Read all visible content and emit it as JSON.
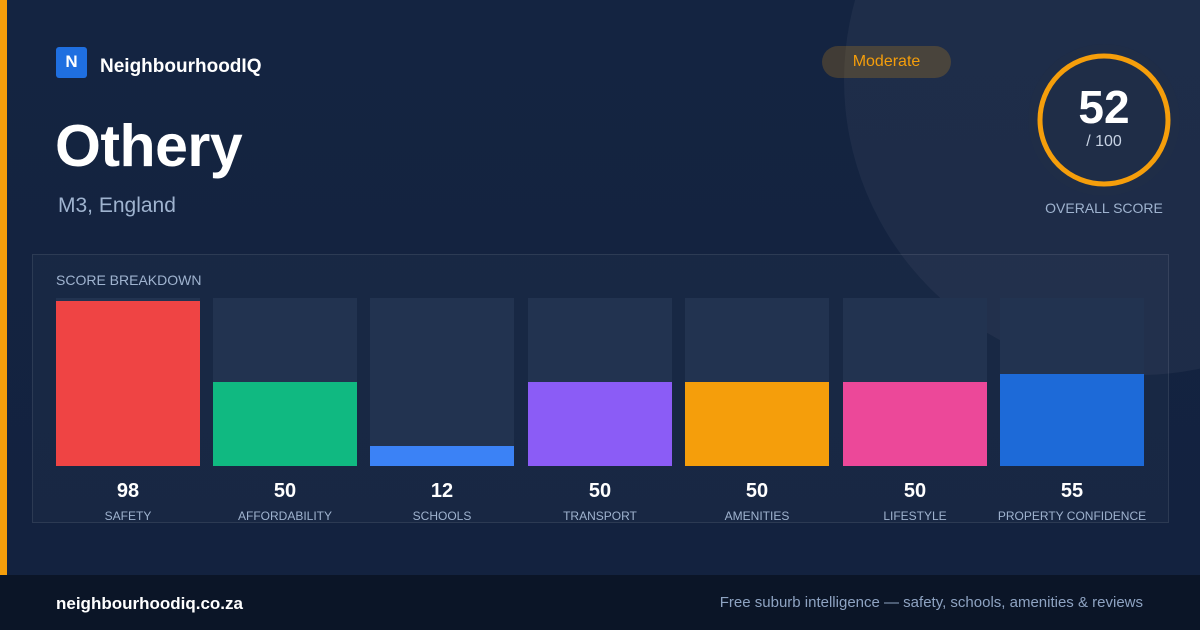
{
  "brand": {
    "logo_letter": "N",
    "name": "NeighbourhoodIQ",
    "color": "#1f6fe0"
  },
  "suburb": {
    "name": "Othery",
    "location": "M3, England"
  },
  "rating": {
    "label": "Moderate",
    "color": "#f59e0b"
  },
  "overall": {
    "score": "52",
    "max_label": "/ 100",
    "label": "OVERALL SCORE",
    "value": 52,
    "max": 100,
    "color": "#f59e0b"
  },
  "breakdown": {
    "title": "SCORE BREAKDOWN",
    "items": [
      {
        "label": "SAFETY",
        "value": 98,
        "value_text": "98",
        "color": "#ef4444"
      },
      {
        "label": "AFFORDABILITY",
        "value": 50,
        "value_text": "50",
        "color": "#10b981"
      },
      {
        "label": "SCHOOLS",
        "value": 12,
        "value_text": "12",
        "color": "#3b82f6"
      },
      {
        "label": "TRANSPORT",
        "value": 50,
        "value_text": "50",
        "color": "#8b5cf6"
      },
      {
        "label": "AMENITIES",
        "value": 50,
        "value_text": "50",
        "color": "#f59e0b"
      },
      {
        "label": "LIFESTYLE",
        "value": 50,
        "value_text": "50",
        "color": "#ec4899"
      },
      {
        "label": "PROPERTY CONFIDENCE",
        "value": 55,
        "value_text": "55",
        "color": "#1d6ad8"
      }
    ]
  },
  "footer": {
    "domain": "neighbourhoodiq.co.za",
    "tagline": "Free suburb intelligence — safety, schools, amenities & reviews"
  },
  "colors": {
    "accent": "#f59e0b",
    "background": "#142441",
    "footer_bg": "#0b1527"
  }
}
